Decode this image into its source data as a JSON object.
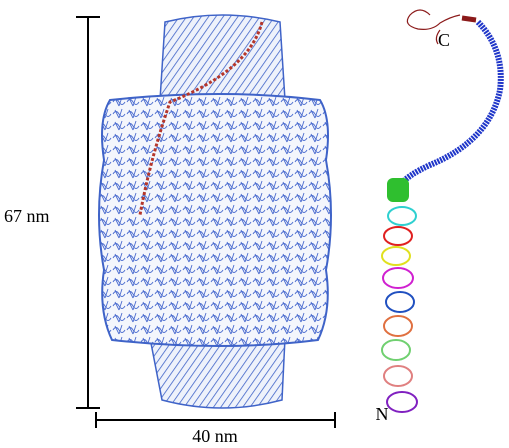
{
  "labels": {
    "height": "67 nm",
    "width": "40 nm",
    "c_terminus": "C",
    "n_terminus": "N"
  }
}
